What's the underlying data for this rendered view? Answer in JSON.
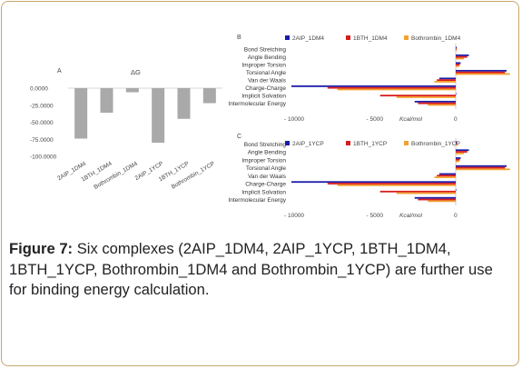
{
  "chart_data": [
    {
      "panel": "A",
      "type": "bar",
      "title": "ΔG",
      "categories": [
        "2AIP_1DM4",
        "1BTH_1DM4",
        "Bothrombin_1DM4",
        "2AIP_1YCP",
        "1BTH_1YCP",
        "Bothrombin_1YCP"
      ],
      "values": [
        -74,
        -36,
        -6,
        -80,
        -45,
        -22
      ],
      "yticks": [
        "0.0000",
        "-25.0000",
        "-50.0000",
        "-75.0000",
        "-100.0000"
      ],
      "ylim": [
        -100,
        0
      ],
      "color": "#a9a9a9"
    },
    {
      "panel": "B",
      "type": "bar",
      "orientation": "horizontal",
      "categories": [
        "Bond Stretching",
        "Angle Bending",
        "Improper Torsion",
        "Torsional Angle",
        "Van der Waals",
        "Charge-Charge",
        "Implicit Solvation",
        "Intermolecular Energy"
      ],
      "series": [
        {
          "name": "2AIP_1DM4",
          "color": "#1a1aa8",
          "values": [
            60,
            800,
            300,
            3100,
            -1000,
            -10000,
            0,
            -2500
          ]
        },
        {
          "name": "1BTH_1DM4",
          "color": "#d81c1c",
          "values": [
            50,
            700,
            250,
            3000,
            -1150,
            -7800,
            -4600,
            -2300
          ]
        },
        {
          "name": "Bothrombin_1DM4",
          "color": "#f5a030",
          "values": [
            40,
            500,
            200,
            3300,
            -1300,
            -7200,
            -3600,
            -1700
          ]
        }
      ],
      "xticks": [
        "- 10000",
        "- 5000",
        "0"
      ],
      "xlabel": "Kcal/mol",
      "xlim": [
        -11500,
        4000
      ]
    },
    {
      "panel": "C",
      "type": "bar",
      "orientation": "horizontal",
      "categories": [
        "Bond Stretching",
        "Angle Bending",
        "Improper Torsion",
        "Torsional Angle",
        "Van der Waals",
        "Charge-Charge",
        "Implicit Solvation",
        "Intermolecular Energy"
      ],
      "series": [
        {
          "name": "2AIP_1YCP",
          "color": "#1a1aa8",
          "values": [
            60,
            800,
            300,
            3100,
            -1000,
            -10000,
            0,
            -2500
          ]
        },
        {
          "name": "1BTH_1YCP",
          "color": "#d81c1c",
          "values": [
            50,
            700,
            250,
            3000,
            -1150,
            -7800,
            -4600,
            -2300
          ]
        },
        {
          "name": "Bothrombin_1YCP",
          "color": "#f5a030",
          "values": [
            40,
            500,
            200,
            3300,
            -1300,
            -7200,
            -3600,
            -1700
          ]
        }
      ],
      "xticks": [
        "- 10000",
        "- 5000",
        "0"
      ],
      "xlabel": "Kcal/mol",
      "xlim": [
        -11500,
        4000
      ]
    }
  ],
  "caption": {
    "label": "Figure 7:",
    "text": " Six complexes (2AIP_1DM4, 2AIP_1YCP, 1BTH_1DM4, 1BTH_1YCP, Bothrombin_1DM4 and Bothrombin_1YCP) are further use for binding energy calculation."
  }
}
